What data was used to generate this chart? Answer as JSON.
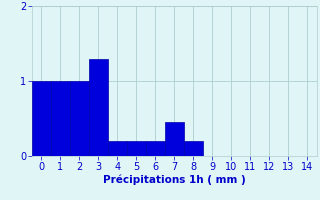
{
  "categories": [
    0,
    1,
    2,
    3,
    4,
    5,
    6,
    7,
    8,
    9,
    10,
    11,
    12,
    13,
    14
  ],
  "values": [
    1.0,
    1.0,
    1.0,
    1.3,
    0.2,
    0.2,
    0.2,
    0.45,
    0.2,
    0,
    0,
    0,
    0,
    0,
    0
  ],
  "bar_color": "#0000dd",
  "bar_edge_color": "#0000aa",
  "background_color": "#e0f5f5",
  "grid_color": "#b0cece",
  "xlabel": "Précipitations 1h ( mm )",
  "xlabel_color": "#0000cc",
  "tick_color": "#0000cc",
  "ylim": [
    0,
    2
  ],
  "yticks": [
    0,
    1,
    2
  ],
  "xlim": [
    -0.5,
    14.5
  ],
  "xticks": [
    0,
    1,
    2,
    3,
    4,
    5,
    6,
    7,
    8,
    9,
    10,
    11,
    12,
    13,
    14
  ],
  "bar_width": 1.0,
  "xlabel_fontsize": 7.5,
  "tick_fontsize": 7
}
